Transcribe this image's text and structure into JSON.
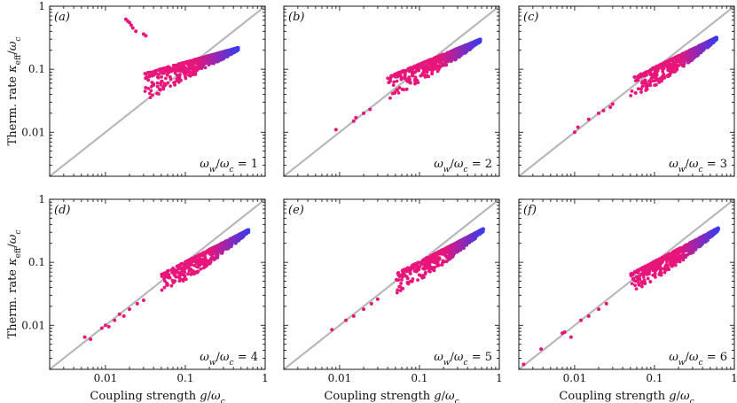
{
  "chart_data": {
    "type": "scatter",
    "xscale": "log",
    "yscale": "log",
    "xlim": [
      0.002,
      1
    ],
    "ylim": [
      0.002,
      1
    ],
    "reference_line": "y = x",
    "xlabel": "Coupling strength g/ω_c",
    "ylabel": "Therm. rate κ_eff/ω_c",
    "xticks": [
      "0.01",
      "0.1",
      "1"
    ],
    "yticks": [
      "0.01",
      "0.1",
      "1"
    ],
    "colors": {
      "low": "#e8157a",
      "high": "#3a3aee",
      "diagonal": "#b8b8b8"
    },
    "panels": [
      {
        "label": "(a)",
        "ratio": "ω_w/ω_c = 1",
        "ratio_value": 1,
        "cloud": {
          "x_range": [
            0.03,
            0.46
          ],
          "y_upper_at_left": 0.085,
          "y_upper_at_right": 0.22,
          "y_lower_at_left": 0.025
        },
        "outliers": [
          [
            0.018,
            0.62
          ],
          [
            0.019,
            0.58
          ],
          [
            0.02,
            0.55
          ],
          [
            0.021,
            0.5
          ],
          [
            0.022,
            0.45
          ],
          [
            0.024,
            0.4
          ],
          [
            0.03,
            0.36
          ],
          [
            0.032,
            0.34
          ]
        ]
      },
      {
        "label": "(b)",
        "ratio": "ω_w/ω_c = 2",
        "ratio_value": 2,
        "cloud": {
          "x_range": [
            0.04,
            0.58
          ],
          "y_upper_at_left": 0.075,
          "y_upper_at_right": 0.3,
          "y_lower_at_left": 0.03
        },
        "outliers": [
          [
            0.009,
            0.011
          ],
          [
            0.015,
            0.015
          ],
          [
            0.016,
            0.017
          ],
          [
            0.02,
            0.02
          ],
          [
            0.024,
            0.023
          ]
        ]
      },
      {
        "label": "(c)",
        "ratio": "ω_w/ω_c = 3",
        "ratio_value": 3,
        "cloud": {
          "x_range": [
            0.05,
            0.6
          ],
          "y_upper_at_left": 0.07,
          "y_upper_at_right": 0.32,
          "y_lower_at_left": 0.03
        },
        "outliers": [
          [
            0.01,
            0.01
          ],
          [
            0.011,
            0.012
          ],
          [
            0.015,
            0.016
          ],
          [
            0.02,
            0.02
          ],
          [
            0.023,
            0.022
          ],
          [
            0.028,
            0.025
          ],
          [
            0.03,
            0.028
          ]
        ]
      },
      {
        "label": "(d)",
        "ratio": "ω_w/ω_c = 4",
        "ratio_value": 4,
        "cloud": {
          "x_range": [
            0.05,
            0.62
          ],
          "y_upper_at_left": 0.065,
          "y_upper_at_right": 0.33,
          "y_lower_at_left": 0.03
        },
        "outliers": [
          [
            0.0055,
            0.0065
          ],
          [
            0.0065,
            0.006
          ],
          [
            0.009,
            0.009
          ],
          [
            0.01,
            0.01
          ],
          [
            0.011,
            0.0095
          ],
          [
            0.013,
            0.012
          ],
          [
            0.015,
            0.015
          ],
          [
            0.017,
            0.014
          ],
          [
            0.02,
            0.018
          ],
          [
            0.025,
            0.022
          ],
          [
            0.03,
            0.025
          ]
        ]
      },
      {
        "label": "(e)",
        "ratio": "ω_w/ω_c = 5",
        "ratio_value": 5,
        "cloud": {
          "x_range": [
            0.05,
            0.63
          ],
          "y_upper_at_left": 0.065,
          "y_upper_at_right": 0.34,
          "y_lower_at_left": 0.03
        },
        "outliers": [
          [
            0.008,
            0.0085
          ],
          [
            0.012,
            0.012
          ],
          [
            0.015,
            0.014
          ],
          [
            0.02,
            0.018
          ],
          [
            0.025,
            0.022
          ],
          [
            0.03,
            0.026
          ]
        ]
      },
      {
        "label": "(f)",
        "ratio": "ω_w/ω_c = 6",
        "ratio_value": 6,
        "cloud": {
          "x_range": [
            0.05,
            0.63
          ],
          "y_upper_at_left": 0.065,
          "y_upper_at_right": 0.35,
          "y_lower_at_left": 0.03
        },
        "outliers": [
          [
            0.0023,
            0.0024
          ],
          [
            0.0038,
            0.0042
          ],
          [
            0.007,
            0.0075
          ],
          [
            0.0075,
            0.0078
          ],
          [
            0.009,
            0.0065
          ],
          [
            0.012,
            0.012
          ],
          [
            0.015,
            0.014
          ],
          [
            0.02,
            0.018
          ],
          [
            0.025,
            0.022
          ]
        ]
      }
    ]
  }
}
